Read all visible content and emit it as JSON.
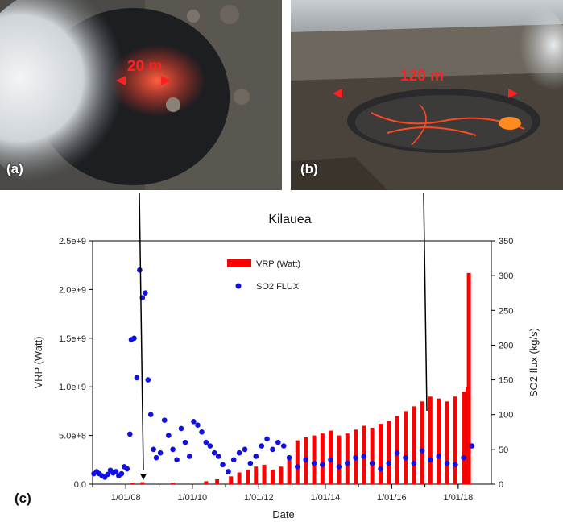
{
  "panels": {
    "a": {
      "label": "(a)",
      "scale": "20 m"
    },
    "b": {
      "label": "(b)",
      "scale": "120 m"
    },
    "c": {
      "label": "(c)"
    }
  },
  "colors": {
    "vrp": "#ff0000",
    "so2": "#1010e0",
    "scale_marker": "#ff2020"
  },
  "chart_data": {
    "type": "bar",
    "title": "Kilauea",
    "xlabel": "Date",
    "ylabel": "VRP (Watt)",
    "y2label": "SO2 flux (kg/s)",
    "legend_position": "top-center",
    "grid": false,
    "x_range": [
      "2007-01-01",
      "2018-12-31"
    ],
    "ylim": [
      0,
      2500000000
    ],
    "y2lim": [
      0,
      350
    ],
    "x_ticks": [
      "1/01/08",
      "1/01/10",
      "1/01/12",
      "1/01/14",
      "1/01/16",
      "1/01/18"
    ],
    "y_ticks": [
      "0.0",
      "5.0e+8",
      "1.0e+9",
      "1.5e+9",
      "2.0e+9",
      "2.5e+9"
    ],
    "y2_ticks": [
      "0",
      "50",
      "100",
      "150",
      "200",
      "250",
      "300",
      "350"
    ],
    "series": [
      {
        "name": "VRP (Watt)",
        "kind": "bar",
        "axis": "left",
        "x": [
          "2008-03-15",
          "2008-07-01",
          "2009-06-01",
          "2010-06-01",
          "2010-10-01",
          "2011-03-01",
          "2011-06-01",
          "2011-09-01",
          "2011-12-01",
          "2012-03-01",
          "2012-06-01",
          "2012-09-01",
          "2012-12-01",
          "2013-03-01",
          "2013-06-01",
          "2013-09-01",
          "2013-12-01",
          "2014-03-01",
          "2014-06-01",
          "2014-09-01",
          "2014-12-01",
          "2015-03-01",
          "2015-06-01",
          "2015-09-01",
          "2015-12-01",
          "2016-03-01",
          "2016-06-01",
          "2016-09-01",
          "2016-12-01",
          "2017-03-01",
          "2017-06-01",
          "2017-09-01",
          "2017-12-01",
          "2018-03-01",
          "2018-04-15",
          "2018-04-28"
        ],
        "values": [
          15000000,
          20000000,
          15000000,
          30000000,
          50000000,
          80000000,
          120000000,
          150000000,
          180000000,
          200000000,
          150000000,
          180000000,
          250000000,
          450000000,
          480000000,
          500000000,
          520000000,
          550000000,
          500000000,
          520000000,
          560000000,
          600000000,
          580000000,
          620000000,
          650000000,
          700000000,
          750000000,
          800000000,
          850000000,
          900000000,
          880000000,
          850000000,
          900000000,
          950000000,
          1000000000,
          2170000000
        ]
      },
      {
        "name": "SO2 FLUX",
        "kind": "scatter",
        "axis": "right",
        "x": [
          "2007-01-15",
          "2007-02-15",
          "2007-03-15",
          "2007-04-15",
          "2007-05-15",
          "2007-06-15",
          "2007-07-15",
          "2007-08-15",
          "2007-09-15",
          "2007-10-15",
          "2007-11-15",
          "2007-12-15",
          "2008-01-15",
          "2008-02-15",
          "2008-03-01",
          "2008-04-01",
          "2008-05-01",
          "2008-06-01",
          "2008-07-01",
          "2008-08-01",
          "2008-09-01",
          "2008-10-01",
          "2008-11-01",
          "2008-12-01",
          "2009-01-15",
          "2009-03-01",
          "2009-04-15",
          "2009-06-01",
          "2009-07-15",
          "2009-09-01",
          "2009-10-15",
          "2009-12-01",
          "2010-01-15",
          "2010-03-01",
          "2010-04-15",
          "2010-06-01",
          "2010-07-15",
          "2010-09-01",
          "2010-10-15",
          "2010-12-01",
          "2011-02-01",
          "2011-04-01",
          "2011-06-01",
          "2011-08-01",
          "2011-10-01",
          "2011-12-01",
          "2012-02-01",
          "2012-04-01",
          "2012-06-01",
          "2012-08-01",
          "2012-10-01",
          "2012-12-01",
          "2013-03-01",
          "2013-06-01",
          "2013-09-01",
          "2013-12-01",
          "2014-03-01",
          "2014-06-01",
          "2014-09-01",
          "2014-12-01",
          "2015-03-01",
          "2015-06-01",
          "2015-09-01",
          "2015-12-01",
          "2016-03-01",
          "2016-06-01",
          "2016-09-01",
          "2016-12-01",
          "2017-03-01",
          "2017-06-01",
          "2017-09-01",
          "2017-12-01",
          "2018-03-01",
          "2018-06-01"
        ],
        "values": [
          15,
          18,
          15,
          12,
          10,
          14,
          20,
          16,
          18,
          12,
          15,
          25,
          22,
          72,
          208,
          210,
          153,
          308,
          268,
          275,
          150,
          100,
          50,
          38,
          45,
          92,
          70,
          50,
          35,
          80,
          60,
          40,
          90,
          85,
          75,
          60,
          55,
          45,
          40,
          28,
          18,
          35,
          45,
          50,
          30,
          40,
          55,
          65,
          50,
          60,
          55,
          38,
          25,
          35,
          30,
          28,
          35,
          25,
          30,
          38,
          40,
          30,
          22,
          30,
          45,
          38,
          30,
          48,
          35,
          40,
          30,
          28,
          38,
          55
        ]
      }
    ]
  }
}
